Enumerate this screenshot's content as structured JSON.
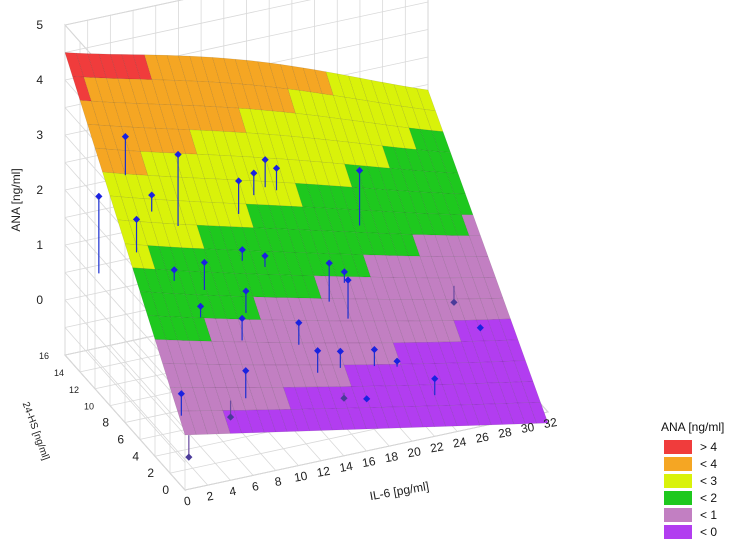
{
  "chart_data": {
    "type": "3d-surface-scatter",
    "title": "",
    "xlabel": "IL-6 [pg/ml]",
    "ylabel": "24-HS [ng/ml]",
    "zlabel": "ANA [ng/ml]",
    "x_ticks": [
      "0",
      "2",
      "4",
      "6",
      "8",
      "10",
      "12",
      "14",
      "16",
      "18",
      "20",
      "22",
      "24",
      "26",
      "28",
      "30",
      "32"
    ],
    "y_ticks": [
      "0",
      "2",
      "4",
      "6",
      "8",
      "10",
      "12",
      "14",
      "16"
    ],
    "z_ticks": [
      "0",
      "1",
      "2",
      "3",
      "4",
      "5"
    ],
    "xlim": [
      0,
      32
    ],
    "ylim": [
      0,
      16
    ],
    "zlim": [
      -1,
      5
    ],
    "grid": true,
    "legend": {
      "title": "ANA [ng/ml]",
      "placement": "bottom-right",
      "entries": [
        {
          "label": "> 4",
          "color": "#f03c3c"
        },
        {
          "label": "< 4",
          "color": "#f5a623"
        },
        {
          "label": "< 3",
          "color": "#d9f20a"
        },
        {
          "label": "< 2",
          "color": "#1ec81e"
        },
        {
          "label": "< 1",
          "color": "#c27fc2"
        },
        {
          "label": "< 0",
          "color": "#b23df0"
        }
      ]
    },
    "surface": {
      "description_fit": "quadratic",
      "samples": [
        {
          "x": 0,
          "y": 16,
          "z": 4.5
        },
        {
          "x": 0,
          "y": 0,
          "z": 0
        },
        {
          "x": 32,
          "y": 16,
          "z": 2.4
        },
        {
          "x": 32,
          "y": 0,
          "z": -1.2
        }
      ]
    },
    "points": [
      {
        "x": 1,
        "y": 13,
        "z": 2.3,
        "zs": 0.9
      },
      {
        "x": 3,
        "y": 11,
        "z": 2.1,
        "zs": 1.5
      },
      {
        "x": 4,
        "y": 14,
        "z": 3.1,
        "zs": 2.4
      },
      {
        "x": 5,
        "y": 12,
        "z": 2.3,
        "zs": 2.0
      },
      {
        "x": 6,
        "y": 10,
        "z": 3.3,
        "zs": 2.0
      },
      {
        "x": 5,
        "y": 9,
        "z": 1.4,
        "zs": 1.2
      },
      {
        "x": 7,
        "y": 8,
        "z": 1.6,
        "zs": 1.1
      },
      {
        "x": 6,
        "y": 7,
        "z": 1.0,
        "zs": 0.8
      },
      {
        "x": 1,
        "y": 2,
        "z": 0.4,
        "zs": 0.0
      },
      {
        "x": 1,
        "y": 1,
        "z": -0.6,
        "zs": -0.2
      },
      {
        "x": 9,
        "y": 6,
        "z": 0.8,
        "zs": 0.4
      },
      {
        "x": 10,
        "y": 7,
        "z": 1.1,
        "zs": 0.7
      },
      {
        "x": 11,
        "y": 9,
        "z": 1.5,
        "zs": 1.3
      },
      {
        "x": 12,
        "y": 11,
        "z": 2.4,
        "zs": 1.8
      },
      {
        "x": 14,
        "y": 12,
        "z": 2.3,
        "zs": 1.9
      },
      {
        "x": 15,
        "y": 12,
        "z": 2.5,
        "zs": 2.0
      },
      {
        "x": 16,
        "y": 12,
        "z": 2.3,
        "zs": 1.9
      },
      {
        "x": 13,
        "y": 9,
        "z": 1.3,
        "zs": 1.1
      },
      {
        "x": 8,
        "y": 4,
        "z": 0.2,
        "zs": -0.3
      },
      {
        "x": 6,
        "y": 3,
        "z": -0.4,
        "zs": -0.1
      },
      {
        "x": 14,
        "y": 6,
        "z": 0.5,
        "zs": 0.1
      },
      {
        "x": 15,
        "y": 5,
        "z": 0.1,
        "zs": -0.3
      },
      {
        "x": 16,
        "y": 3,
        "z": -0.5,
        "zs": -0.4
      },
      {
        "x": 18,
        "y": 8,
        "z": 1.1,
        "zs": 0.4
      },
      {
        "x": 19,
        "y": 7,
        "z": 0.9,
        "zs": 0.2
      },
      {
        "x": 17,
        "y": 5,
        "z": 0.0,
        "zs": -0.3
      },
      {
        "x": 20,
        "y": 5,
        "z": -0.1,
        "zs": -0.4
      },
      {
        "x": 22,
        "y": 10,
        "z": 2.3,
        "zs": 1.3
      },
      {
        "x": 20,
        "y": 9,
        "z": 0.7,
        "zs": 0.5
      },
      {
        "x": 24,
        "y": 3,
        "z": -0.5,
        "zs": -0.8
      },
      {
        "x": 29,
        "y": 8,
        "z": -0.1,
        "zs": 0.2
      },
      {
        "x": 30,
        "y": 6,
        "z": -0.3,
        "zs": -0.3
      },
      {
        "x": 22,
        "y": 5,
        "z": -0.4,
        "zs": -0.5
      },
      {
        "x": 18,
        "y": 3,
        "z": -0.6,
        "zs": -0.6
      }
    ]
  }
}
